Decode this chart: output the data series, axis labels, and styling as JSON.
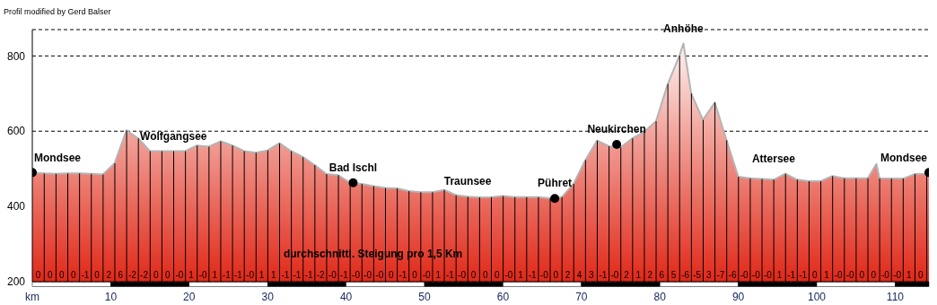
{
  "chart_data": {
    "type": "area",
    "title": "Profil modified by Gerd Balser",
    "xlim": [
      0,
      114.3
    ],
    "ylim": [
      200,
      870
    ],
    "xticks": [
      {
        "value": 0,
        "label": "km"
      },
      10,
      20,
      30,
      40,
      50,
      60,
      70,
      80,
      90,
      100,
      110
    ],
    "yticks": [
      200,
      400,
      600,
      800
    ],
    "grid": "y",
    "series": [
      {
        "color": "#e02818",
        "x": [
          0,
          1.5,
          3,
          4.5,
          6,
          7.5,
          9,
          10.5,
          12,
          13.5,
          15,
          16.5,
          18,
          19.5,
          21,
          22.5,
          24,
          25.5,
          27,
          28.5,
          30,
          31.5,
          33,
          34.5,
          36,
          37.5,
          39,
          40.5,
          42,
          43.5,
          45,
          46.5,
          48,
          49.5,
          51,
          52.5,
          54,
          55.5,
          57,
          58.5,
          60,
          61.5,
          63,
          64.5,
          66,
          67.5,
          69,
          70.5,
          72,
          73.5,
          75,
          76.5,
          78,
          79.5,
          81,
          82.5,
          83,
          84,
          85.5,
          87,
          88.5,
          90,
          91.5,
          93,
          94.5,
          96,
          97.5,
          99,
          100.5,
          102,
          103.5,
          105,
          106.5,
          107.6,
          108,
          109.5,
          111,
          112.5,
          114,
          114.3
        ],
        "values": [
          490,
          488,
          487,
          488,
          488,
          487,
          485,
          515,
          602,
          581,
          547,
          547,
          547,
          547,
          562,
          559,
          573,
          562,
          547,
          543,
          549,
          568,
          547,
          531,
          510,
          486,
          483,
          463,
          460,
          454,
          449,
          448,
          441,
          438,
          438,
          444,
          430,
          426,
          424,
          425,
          428,
          425,
          425,
          425,
          422,
          425,
          460,
          523,
          575,
          560,
          557,
          581,
          598,
          626,
          725,
          801,
          833,
          700,
          630,
          676,
          576,
          479,
          475,
          473,
          471,
          487,
          471,
          467,
          467,
          481,
          475,
          475,
          475,
          513,
          475,
          474,
          474,
          486,
          487,
          490
        ]
      },
      {
        "type": "bar",
        "color": "#000000",
        "x": [
          1.5,
          3,
          4.5,
          6,
          7.5,
          9,
          10.5,
          12,
          13.5,
          15,
          16.5,
          18,
          19.5,
          21,
          22.5,
          24,
          25.5,
          27,
          28.5,
          30,
          31.5,
          33,
          34.5,
          36,
          37.5,
          39,
          40.5,
          42,
          43.5,
          45,
          46.5,
          48,
          49.5,
          51,
          52.5,
          54,
          55.5,
          57,
          58.5,
          60,
          61.5,
          63,
          64.5,
          66,
          67.5,
          69,
          70.5,
          72,
          73.5,
          75,
          76.5,
          78,
          79.5,
          81,
          82.5,
          84,
          85.5,
          87,
          88.5,
          90,
          91.5,
          93,
          94.5,
          96,
          97.5,
          99,
          100.5,
          102,
          103.5,
          105,
          106.5,
          108,
          109.5,
          111,
          112.5,
          114
        ],
        "values": [
          488,
          487,
          488,
          488,
          487,
          485,
          515,
          602,
          581,
          547,
          547,
          547,
          547,
          562,
          559,
          573,
          562,
          547,
          543,
          549,
          568,
          547,
          531,
          510,
          486,
          483,
          463,
          460,
          454,
          449,
          448,
          441,
          438,
          438,
          444,
          430,
          426,
          424,
          425,
          428,
          425,
          425,
          425,
          422,
          425,
          460,
          523,
          575,
          560,
          557,
          581,
          598,
          626,
          725,
          801,
          700,
          630,
          676,
          576,
          479,
          475,
          473,
          471,
          487,
          471,
          467,
          467,
          481,
          475,
          475,
          475,
          475,
          474,
          474,
          486,
          487
        ]
      },
      {
        "type": "scatter",
        "color": "#000000",
        "x": [
          0,
          40.9,
          66.6,
          74.5,
          114.3
        ],
        "values": [
          490,
          463,
          421,
          565,
          490
        ]
      }
    ],
    "annotations": [
      {
        "text": "Mondsee",
        "x": 0,
        "y": 490
      },
      {
        "text": "Wolfgangsee",
        "x": 18,
        "y": 547
      },
      {
        "text": "Bad Ischl",
        "x": 40.9,
        "y": 463
      },
      {
        "text": "Traunsee",
        "x": 55.5,
        "y": 426
      },
      {
        "text": "Pühret",
        "x": 66.6,
        "y": 421
      },
      {
        "text": "Neukirchen",
        "x": 74.5,
        "y": 565
      },
      {
        "text": "Anhöhe",
        "x": 83,
        "y": 833
      },
      {
        "text": "Attersee",
        "x": 94.5,
        "y": 487
      },
      {
        "text": "Mondsee",
        "x": 114.3,
        "y": 490
      },
      "durchschnittl. Steigung pro 1,5 Km",
      "0",
      "0",
      "0",
      "0",
      "-1",
      "0",
      "2",
      "6",
      "-2",
      "-2",
      "0",
      "0",
      "-0",
      "1",
      "-0",
      "1",
      "-1",
      "-1",
      "-0",
      "1",
      "1",
      "-1",
      "-1",
      "-1",
      "-2",
      "-0",
      "-1",
      "-0",
      "-0",
      "-0",
      "0",
      "-1",
      "0",
      "-0",
      "1",
      "-1",
      "-0",
      "0",
      "0",
      "0",
      "-0",
      "1",
      "-1",
      "-0",
      "0",
      "2",
      "4",
      "3",
      "-1",
      "-0",
      "2",
      "1",
      "2",
      "6",
      "5",
      "-6",
      "-5",
      "3",
      "-7",
      "-6",
      "-0",
      "-0",
      "-0",
      "1",
      "-1",
      "-1",
      "0",
      "1",
      "-0",
      "-0",
      "0",
      "0",
      "-0",
      "-0",
      "1",
      "0"
    ]
  }
}
